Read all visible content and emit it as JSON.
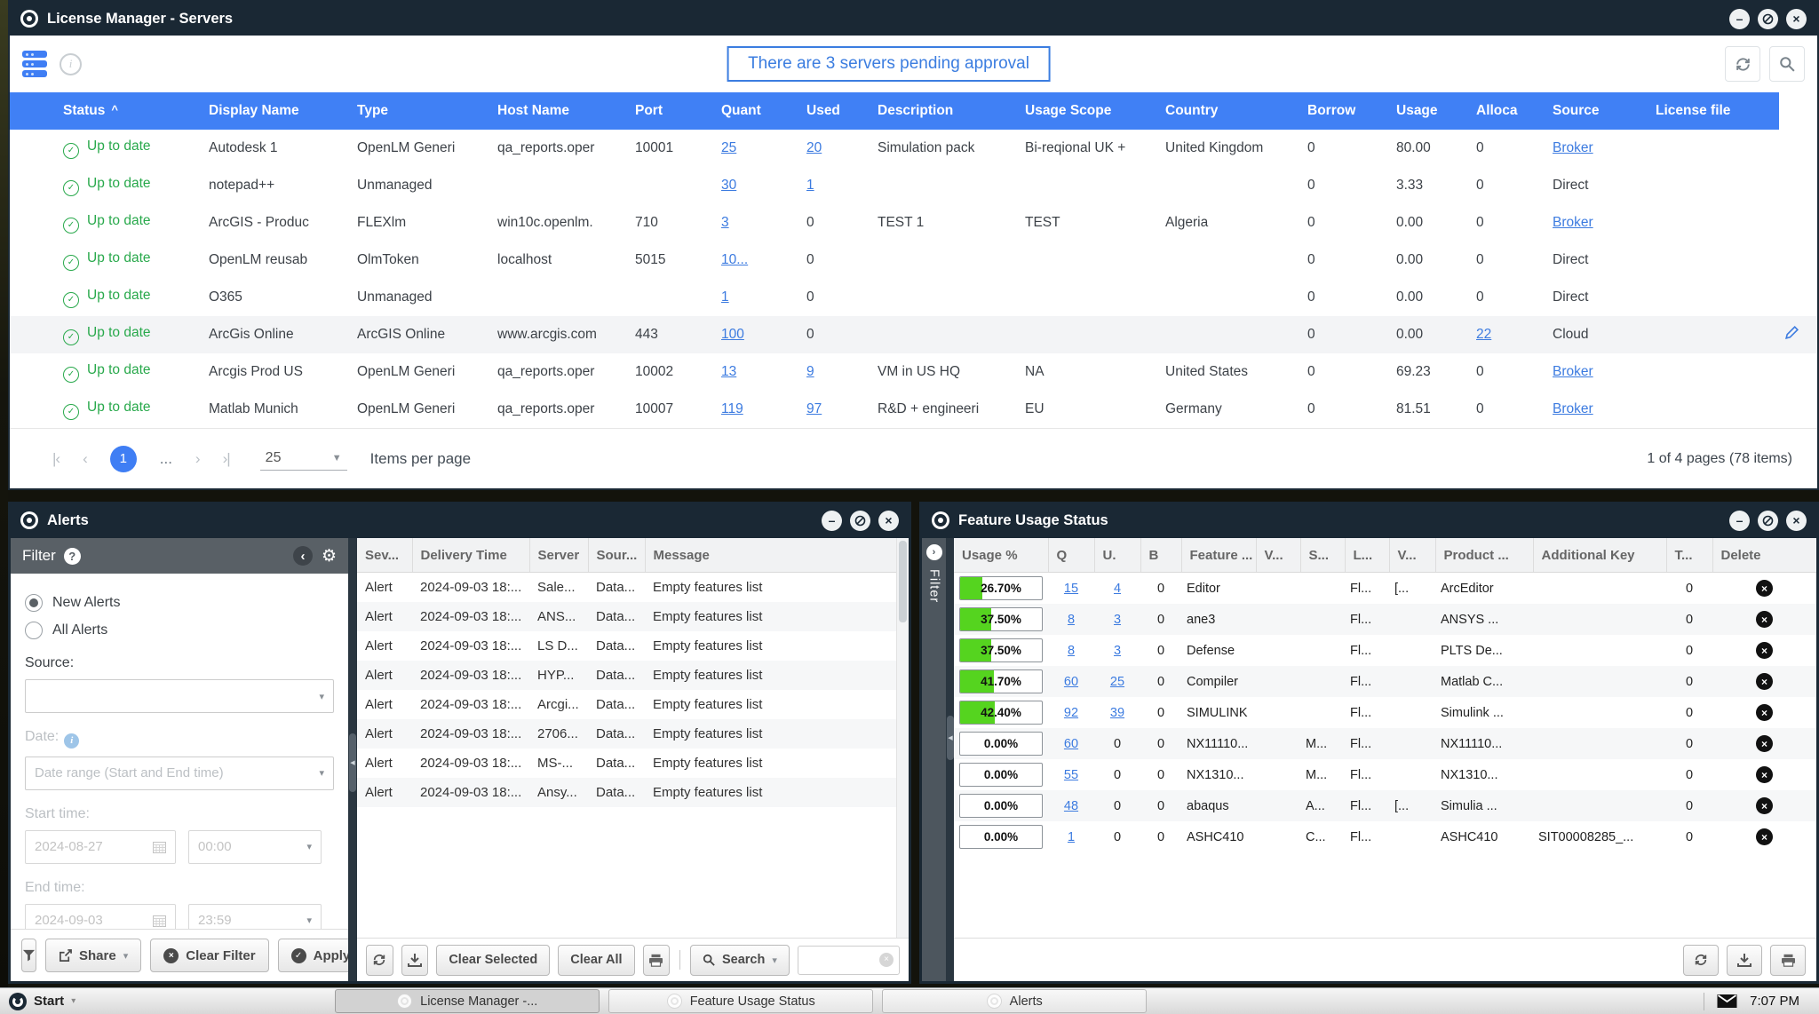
{
  "icons": {
    "status_ok": "✓",
    "delete": "×",
    "sort_asc": "^",
    "caret_down": "▼",
    "caret_small": "▾",
    "collapse_left": "‹",
    "expand_right": "›",
    "gear": "⚙",
    "help": "?",
    "info": "i",
    "minimize": "–",
    "close": "×",
    "first": "|‹",
    "prev": "‹",
    "next": "›",
    "last": "›|",
    "dots_handle": "◀"
  },
  "colors": {
    "accent_blue": "#4080f5",
    "link_blue": "#3c7be0",
    "ok_green": "#29a94c",
    "alert_red": "#e53434",
    "bar_green": "#55d41f",
    "titlebar": "#1a2834"
  },
  "main_window": {
    "title": "License Manager - Servers",
    "banner_text": "There are 3 servers pending approval",
    "columns": [
      "Status",
      "Display Name",
      "Type",
      "Host Name",
      "Port",
      "Quant",
      "Used",
      "Description",
      "Usage Scope",
      "Country",
      "Borrow",
      "Usage",
      "Alloca",
      "Source",
      "License file"
    ],
    "rows": [
      {
        "status": "Up to date",
        "display": "Autodesk 1",
        "type": "OpenLM Generi",
        "host": "qa_reports.oper",
        "port": "10001",
        "quant": "25",
        "used": "20",
        "used_link": true,
        "desc": "Simulation pack",
        "scope": "Bi-reqional UK +",
        "country": "United Kingdom",
        "borrow": "0",
        "usage": "80.00",
        "alloc": "0",
        "alloc_link": false,
        "source": "Broker",
        "source_link": true,
        "license": "",
        "edit": false,
        "highlight": false
      },
      {
        "status": "Up to date",
        "display": "notepad++",
        "type": "Unmanaged",
        "host": "",
        "port": "",
        "quant": "30",
        "used": "1",
        "used_link": true,
        "desc": "",
        "scope": "",
        "country": "",
        "borrow": "0",
        "usage": "3.33",
        "alloc": "0",
        "alloc_link": false,
        "source": "Direct",
        "source_link": false,
        "license": "",
        "edit": false,
        "highlight": false
      },
      {
        "status": "Up to date",
        "display": "ArcGIS - Produc",
        "type": "FLEXlm",
        "host": "win10c.openlm.",
        "port": "710",
        "quant": "3",
        "used": "0",
        "used_link": false,
        "desc": "TEST 1",
        "scope": "TEST",
        "country": "Algeria",
        "borrow": "0",
        "usage": "0.00",
        "alloc": "0",
        "alloc_link": false,
        "source": "Broker",
        "source_link": true,
        "license": "",
        "edit": false,
        "highlight": false
      },
      {
        "status": "Up to date",
        "display": "OpenLM reusab",
        "type": "OlmToken",
        "host": "localhost",
        "port": "5015",
        "quant": "10...",
        "used": "0",
        "used_link": false,
        "desc": "",
        "scope": "",
        "country": "",
        "borrow": "0",
        "usage": "0.00",
        "alloc": "0",
        "alloc_link": false,
        "source": "Direct",
        "source_link": false,
        "license": "",
        "edit": false,
        "highlight": false
      },
      {
        "status": "Up to date",
        "display": "O365",
        "type": "Unmanaged",
        "host": "",
        "port": "",
        "quant": "1",
        "used": "0",
        "used_link": false,
        "desc": "",
        "scope": "",
        "country": "",
        "borrow": "0",
        "usage": "0.00",
        "alloc": "0",
        "alloc_link": false,
        "source": "Direct",
        "source_link": false,
        "license": "",
        "edit": false,
        "highlight": false
      },
      {
        "status": "Up to date",
        "display": "ArcGis Online",
        "type": "ArcGIS Online",
        "host": "www.arcgis.com",
        "port": "443",
        "quant": "100",
        "used": "0",
        "used_link": false,
        "desc": "",
        "scope": "",
        "country": "",
        "borrow": "0",
        "usage": "0.00",
        "alloc": "22",
        "alloc_link": true,
        "source": "Cloud",
        "source_link": false,
        "license": "",
        "edit": true,
        "highlight": true
      },
      {
        "status": "Up to date",
        "display": "Arcgis Prod US",
        "type": "OpenLM Generi",
        "host": "qa_reports.oper",
        "port": "10002",
        "quant": "13",
        "used": "9",
        "used_link": true,
        "desc": "VM in US HQ",
        "scope": "NA",
        "country": "United States",
        "borrow": "0",
        "usage": "69.23",
        "alloc": "0",
        "alloc_link": false,
        "source": "Broker",
        "source_link": true,
        "license": "",
        "edit": false,
        "highlight": false
      },
      {
        "status": "Up to date",
        "display": "Matlab Munich",
        "type": "OpenLM Generi",
        "host": "qa_reports.oper",
        "port": "10007",
        "quant": "119",
        "used": "97",
        "used_link": true,
        "desc": "R&D + engineeri",
        "scope": "EU",
        "country": "Germany",
        "borrow": "0",
        "usage": "81.51",
        "alloc": "0",
        "alloc_link": false,
        "source": "Broker",
        "source_link": true,
        "license": "",
        "edit": false,
        "highlight": false
      }
    ],
    "pagination": {
      "page": "1",
      "ellipsis": "...",
      "page_size": "25",
      "items_label": "Items per page",
      "summary": "1 of 4 pages (78 items)"
    }
  },
  "alerts_window": {
    "title": "Alerts",
    "filter": {
      "header": "Filter",
      "radio_new": "New Alerts",
      "radio_all": "All Alerts",
      "source_label": "Source:",
      "date_label": "Date:",
      "date_range_placeholder": "Date range (Start and End time)",
      "start_label": "Start time:",
      "start_date": "2024-08-27",
      "start_time": "00:00",
      "end_label": "End time:",
      "end_date": "2024-09-03",
      "end_time": "23:59",
      "share_label": "Share",
      "clear_filter_label": "Clear Filter",
      "apply_label": "Apply"
    },
    "columns": [
      "Sev...",
      "Delivery Time",
      "Server",
      "Sour...",
      "Message"
    ],
    "rows": [
      {
        "sev": "Alert",
        "time": "2024-09-03 18:...",
        "server": "Sale...",
        "src": "Data...",
        "msg": "Empty features list"
      },
      {
        "sev": "Alert",
        "time": "2024-09-03 18:...",
        "server": "ANS...",
        "src": "Data...",
        "msg": "Empty features list"
      },
      {
        "sev": "Alert",
        "time": "2024-09-03 18:...",
        "server": "LS D...",
        "src": "Data...",
        "msg": "Empty features list"
      },
      {
        "sev": "Alert",
        "time": "2024-09-03 18:...",
        "server": "HYP...",
        "src": "Data...",
        "msg": "Empty features list"
      },
      {
        "sev": "Alert",
        "time": "2024-09-03 18:...",
        "server": "Arcgi...",
        "src": "Data...",
        "msg": "Empty features list"
      },
      {
        "sev": "Alert",
        "time": "2024-09-03 18:...",
        "server": "2706...",
        "src": "Data...",
        "msg": "Empty features list"
      },
      {
        "sev": "Alert",
        "time": "2024-09-03 18:...",
        "server": "MS-...",
        "src": "Data...",
        "msg": "Empty features list"
      },
      {
        "sev": "Alert",
        "time": "2024-09-03 18:...",
        "server": "Ansy...",
        "src": "Data...",
        "msg": "Empty features list"
      }
    ],
    "toolbar": {
      "clear_selected": "Clear Selected",
      "clear_all": "Clear All",
      "search": "Search"
    }
  },
  "feature_window": {
    "title": "Feature Usage Status",
    "filter_tab": "Filter",
    "columns": [
      "Usage %",
      "Q",
      "U.",
      "B",
      "Feature ...",
      "V...",
      "S...",
      "L...",
      "V...",
      "Product ...",
      "Additional Key",
      "T...",
      "Delete"
    ],
    "rows": [
      {
        "pct": "26.70%",
        "pct_val": 26.7,
        "q": "15",
        "u": "4",
        "u_link": true,
        "b": "0",
        "feature": "Editor",
        "v1": "",
        "s": "",
        "l": "Fl...",
        "v2": "[...",
        "product": "ArcEditor",
        "key": "",
        "t": "0"
      },
      {
        "pct": "37.50%",
        "pct_val": 37.5,
        "q": "8",
        "u": "3",
        "u_link": true,
        "b": "0",
        "feature": "ane3",
        "v1": "",
        "s": "",
        "l": "Fl...",
        "v2": "",
        "product": "ANSYS ...",
        "key": "",
        "t": "0"
      },
      {
        "pct": "37.50%",
        "pct_val": 37.5,
        "q": "8",
        "u": "3",
        "u_link": true,
        "b": "0",
        "feature": "Defense",
        "v1": "",
        "s": "",
        "l": "Fl...",
        "v2": "",
        "product": "PLTS De...",
        "key": "",
        "t": "0"
      },
      {
        "pct": "41.70%",
        "pct_val": 41.7,
        "q": "60",
        "u": "25",
        "u_link": true,
        "b": "0",
        "feature": "Compiler",
        "v1": "",
        "s": "",
        "l": "Fl...",
        "v2": "",
        "product": "Matlab C...",
        "key": "",
        "t": "0"
      },
      {
        "pct": "42.40%",
        "pct_val": 42.4,
        "q": "92",
        "u": "39",
        "u_link": true,
        "b": "0",
        "feature": "SIMULINK",
        "v1": "",
        "s": "",
        "l": "Fl...",
        "v2": "",
        "product": "Simulink ...",
        "key": "",
        "t": "0"
      },
      {
        "pct": "0.00%",
        "pct_val": 0,
        "q": "60",
        "u": "0",
        "u_link": false,
        "b": "0",
        "feature": "NX11110...",
        "v1": "",
        "s": "M...",
        "l": "Fl...",
        "v2": "",
        "product": "NX11110...",
        "key": "",
        "t": "0"
      },
      {
        "pct": "0.00%",
        "pct_val": 0,
        "q": "55",
        "u": "0",
        "u_link": false,
        "b": "0",
        "feature": "NX1310...",
        "v1": "",
        "s": "M...",
        "l": "Fl...",
        "v2": "",
        "product": "NX1310...",
        "key": "",
        "t": "0"
      },
      {
        "pct": "0.00%",
        "pct_val": 0,
        "q": "48",
        "u": "0",
        "u_link": false,
        "b": "0",
        "feature": "abaqus",
        "v1": "",
        "s": "A...",
        "l": "Fl...",
        "v2": "[...",
        "product": "Simulia ...",
        "key": "",
        "t": "0"
      },
      {
        "pct": "0.00%",
        "pct_val": 0,
        "q": "1",
        "u": "0",
        "u_link": false,
        "b": "0",
        "feature": "ASHC410",
        "v1": "",
        "s": "C...",
        "l": "Fl...",
        "v2": "",
        "product": "ASHC410",
        "key": "SIT00008285_...",
        "t": "0"
      }
    ]
  },
  "taskbar": {
    "start": "Start",
    "buttons": [
      "License Manager -...",
      "Feature Usage Status",
      "Alerts"
    ],
    "time": "7:07 PM"
  }
}
